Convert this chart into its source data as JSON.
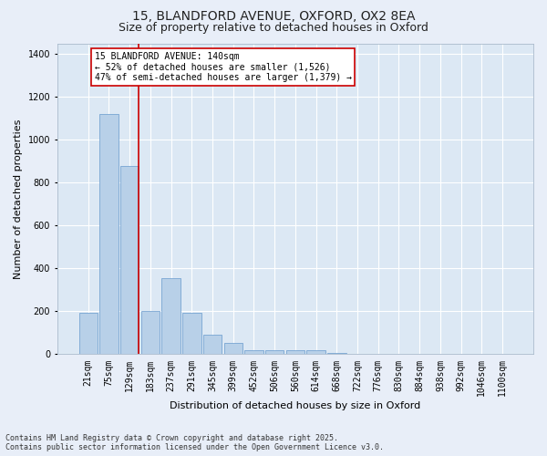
{
  "title_line1": "15, BLANDFORD AVENUE, OXFORD, OX2 8EA",
  "title_line2": "Size of property relative to detached houses in Oxford",
  "xlabel": "Distribution of detached houses by size in Oxford",
  "ylabel": "Number of detached properties",
  "bar_color": "#b8d0e8",
  "bar_edge_color": "#6699cc",
  "background_color": "#dce8f4",
  "grid_color": "#ffffff",
  "annotation_box_color": "#cc0000",
  "vline_color": "#cc0000",
  "categories": [
    "21sqm",
    "75sqm",
    "129sqm",
    "183sqm",
    "237sqm",
    "291sqm",
    "345sqm",
    "399sqm",
    "452sqm",
    "506sqm",
    "560sqm",
    "614sqm",
    "668sqm",
    "722sqm",
    "776sqm",
    "830sqm",
    "884sqm",
    "938sqm",
    "992sqm",
    "1046sqm",
    "1100sqm"
  ],
  "values": [
    193,
    1120,
    880,
    200,
    355,
    195,
    90,
    55,
    20,
    20,
    20,
    20,
    5,
    0,
    0,
    0,
    0,
    0,
    0,
    0,
    0
  ],
  "ylim": [
    0,
    1450
  ],
  "yticks": [
    0,
    200,
    400,
    600,
    800,
    1000,
    1200,
    1400
  ],
  "vline_x": 2.42,
  "annotation_text_line1": "15 BLANDFORD AVENUE: 140sqm",
  "annotation_text_line2": "← 52% of detached houses are smaller (1,526)",
  "annotation_text_line3": "47% of semi-detached houses are larger (1,379) →",
  "footer_line1": "Contains HM Land Registry data © Crown copyright and database right 2025.",
  "footer_line2": "Contains public sector information licensed under the Open Government Licence v3.0.",
  "title_fontsize": 10,
  "subtitle_fontsize": 9,
  "annotation_fontsize": 7,
  "axis_label_fontsize": 8,
  "tick_fontsize": 7,
  "footer_fontsize": 6
}
